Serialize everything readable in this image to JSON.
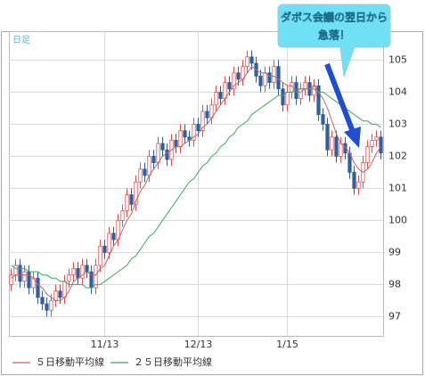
{
  "chart_data": {
    "type": "candlestick",
    "period_label": "日足",
    "annotations": [
      "ダボス会議の翌日から",
      "急落！"
    ],
    "categories": [
      null,
      null,
      null,
      null,
      null,
      null,
      null,
      null,
      null,
      null,
      null,
      null,
      null,
      null,
      null,
      null,
      null,
      null,
      null,
      null,
      null,
      "11/13",
      null,
      null,
      null,
      null,
      null,
      null,
      null,
      null,
      null,
      null,
      null,
      null,
      null,
      null,
      null,
      null,
      null,
      null,
      null,
      null,
      "12/13",
      null,
      null,
      null,
      null,
      null,
      null,
      null,
      null,
      null,
      null,
      null,
      null,
      null,
      null,
      null,
      null,
      null,
      null,
      null,
      "1/15",
      null,
      null,
      null,
      null,
      null,
      null,
      null,
      null,
      null,
      null,
      null,
      null,
      null,
      null,
      null,
      null,
      null,
      null,
      null,
      null,
      null
    ],
    "open": [
      98.0,
      98.3,
      98.6,
      98.1,
      98.4,
      97.9,
      98.2,
      97.6,
      97.4,
      97.2,
      97.5,
      97.8,
      97.6,
      98.1,
      98.3,
      98.5,
      98.2,
      98.6,
      98.4,
      97.9,
      98.6,
      99.2,
      99.0,
      99.6,
      99.4,
      100.0,
      100.3,
      100.8,
      100.5,
      101.2,
      101.6,
      101.4,
      102.0,
      101.8,
      102.4,
      102.2,
      101.9,
      102.5,
      102.3,
      102.8,
      102.6,
      102.5,
      103.0,
      102.8,
      103.4,
      103.2,
      103.6,
      104.0,
      103.8,
      104.3,
      104.1,
      104.6,
      104.4,
      104.8,
      105.1,
      104.9,
      104.5,
      104.2,
      104.6,
      104.3,
      104.8,
      104.1,
      103.6,
      104.0,
      104.3,
      103.8,
      104.1,
      104.3,
      103.9,
      104.2,
      103.3,
      103.0,
      102.2,
      102.6,
      102.0,
      102.4,
      102.1,
      101.5,
      101.0,
      101.2,
      101.8,
      102.3,
      102.5,
      102.6
    ],
    "high": [
      98.5,
      98.8,
      98.8,
      98.6,
      98.6,
      98.4,
      98.4,
      97.8,
      97.6,
      97.7,
      98.0,
      98.0,
      98.3,
      98.5,
      98.7,
      98.7,
      98.8,
      98.8,
      98.6,
      98.8,
      99.4,
      99.4,
      99.8,
      99.8,
      100.2,
      100.5,
      101.0,
      101.0,
      101.4,
      101.8,
      101.8,
      102.2,
      102.2,
      102.6,
      102.6,
      102.4,
      102.7,
      102.7,
      103.0,
      103.0,
      102.8,
      103.2,
      103.2,
      103.6,
      103.6,
      103.8,
      104.2,
      104.2,
      104.5,
      104.5,
      104.8,
      104.8,
      105.0,
      105.3,
      105.3,
      105.1,
      104.7,
      104.8,
      104.8,
      105.0,
      105.0,
      104.3,
      104.2,
      104.5,
      104.5,
      104.3,
      104.5,
      104.5,
      104.4,
      104.4,
      103.5,
      103.2,
      102.8,
      102.8,
      102.6,
      102.6,
      102.3,
      101.7,
      101.4,
      102.0,
      102.5,
      102.7,
      102.8,
      102.8
    ],
    "low": [
      97.8,
      98.1,
      97.9,
      97.9,
      97.7,
      97.7,
      97.4,
      97.2,
      97.0,
      97.0,
      97.3,
      97.4,
      97.4,
      97.9,
      98.1,
      98.0,
      98.0,
      98.2,
      97.7,
      97.7,
      98.4,
      98.8,
      98.8,
      99.2,
      99.2,
      99.8,
      100.1,
      100.3,
      100.3,
      101.0,
      101.2,
      101.2,
      101.6,
      101.6,
      102.0,
      101.7,
      101.7,
      102.1,
      102.1,
      102.4,
      102.3,
      102.3,
      102.6,
      102.6,
      103.0,
      103.0,
      103.4,
      103.6,
      103.6,
      103.9,
      103.9,
      104.2,
      104.2,
      104.6,
      104.7,
      104.3,
      104.0,
      104.0,
      104.1,
      104.1,
      103.9,
      103.4,
      103.4,
      103.8,
      103.6,
      103.6,
      103.9,
      103.7,
      103.7,
      103.1,
      102.8,
      102.0,
      102.0,
      101.8,
      101.8,
      101.9,
      101.3,
      100.8,
      100.8,
      101.0,
      101.6,
      102.1,
      102.3,
      101.9
    ],
    "close": [
      98.3,
      98.6,
      98.1,
      98.4,
      97.9,
      98.2,
      97.6,
      97.4,
      97.2,
      97.5,
      97.8,
      97.6,
      98.1,
      98.3,
      98.5,
      98.2,
      98.6,
      98.4,
      97.9,
      98.6,
      99.2,
      99.0,
      99.6,
      99.4,
      100.0,
      100.3,
      100.8,
      100.5,
      101.2,
      101.6,
      101.4,
      102.0,
      101.8,
      102.4,
      102.2,
      101.9,
      102.5,
      102.3,
      102.8,
      102.6,
      102.5,
      103.0,
      102.8,
      103.4,
      103.2,
      103.6,
      104.0,
      103.8,
      104.3,
      104.1,
      104.6,
      104.4,
      104.8,
      105.1,
      104.9,
      104.5,
      104.2,
      104.6,
      104.3,
      104.8,
      104.1,
      103.6,
      104.0,
      104.3,
      103.8,
      104.1,
      104.3,
      103.9,
      104.2,
      103.3,
      103.0,
      102.2,
      102.6,
      102.0,
      102.4,
      102.1,
      101.5,
      101.0,
      101.2,
      101.8,
      102.3,
      102.5,
      102.6,
      102.1
    ],
    "up_color": "#e05050",
    "down_color": "#2f5f9f",
    "moving_averages": [
      {
        "name": "５日移動平均線",
        "color": "#d06060",
        "values": [
          98.2,
          98.3,
          98.3,
          98.3,
          98.3,
          98.2,
          98.0,
          97.9,
          97.7,
          97.6,
          97.5,
          97.5,
          97.6,
          97.8,
          98.1,
          98.2,
          98.3,
          98.4,
          98.3,
          98.3,
          98.5,
          98.6,
          98.9,
          99.2,
          99.4,
          99.7,
          100.0,
          100.2,
          100.6,
          100.9,
          101.1,
          101.4,
          101.6,
          101.8,
          102.0,
          102.1,
          102.2,
          102.3,
          102.3,
          102.4,
          102.5,
          102.6,
          102.7,
          102.9,
          103.0,
          103.2,
          103.4,
          103.6,
          103.8,
          104.0,
          104.2,
          104.3,
          104.4,
          104.6,
          104.8,
          104.7,
          104.6,
          104.6,
          104.5,
          104.5,
          104.4,
          104.3,
          104.2,
          104.2,
          104.0,
          104.0,
          104.1,
          104.1,
          104.2,
          104.0,
          103.8,
          103.5,
          103.1,
          102.7,
          102.4,
          102.3,
          102.1,
          101.8,
          101.6,
          101.5,
          101.6,
          101.8,
          102.1,
          102.3
        ]
      },
      {
        "name": "２５日移動平均線",
        "color": "#3aaa5a",
        "values": [
          98.6,
          98.5,
          98.5,
          98.5,
          98.4,
          98.4,
          98.4,
          98.3,
          98.3,
          98.2,
          98.2,
          98.1,
          98.1,
          98.0,
          98.0,
          98.0,
          98.0,
          97.9,
          97.9,
          98.0,
          98.0,
          98.1,
          98.2,
          98.3,
          98.4,
          98.5,
          98.6,
          98.8,
          98.9,
          99.1,
          99.3,
          99.5,
          99.6,
          99.8,
          100.0,
          100.2,
          100.4,
          100.6,
          100.8,
          101.0,
          101.2,
          101.3,
          101.5,
          101.7,
          101.8,
          102.0,
          102.1,
          102.3,
          102.4,
          102.6,
          102.7,
          102.9,
          103.0,
          103.1,
          103.3,
          103.4,
          103.5,
          103.6,
          103.7,
          103.8,
          103.9,
          103.9,
          104.0,
          104.0,
          104.1,
          104.1,
          104.1,
          104.1,
          104.1,
          104.0,
          104.0,
          103.9,
          103.8,
          103.7,
          103.6,
          103.5,
          103.4,
          103.3,
          103.2,
          103.1,
          103.1,
          103.0,
          103.0,
          102.9
        ]
      }
    ],
    "ylim": [
      96.4,
      105.9
    ],
    "yticks": [
      97,
      98,
      99,
      100,
      101,
      102,
      103,
      104,
      105
    ],
    "grid": true
  }
}
